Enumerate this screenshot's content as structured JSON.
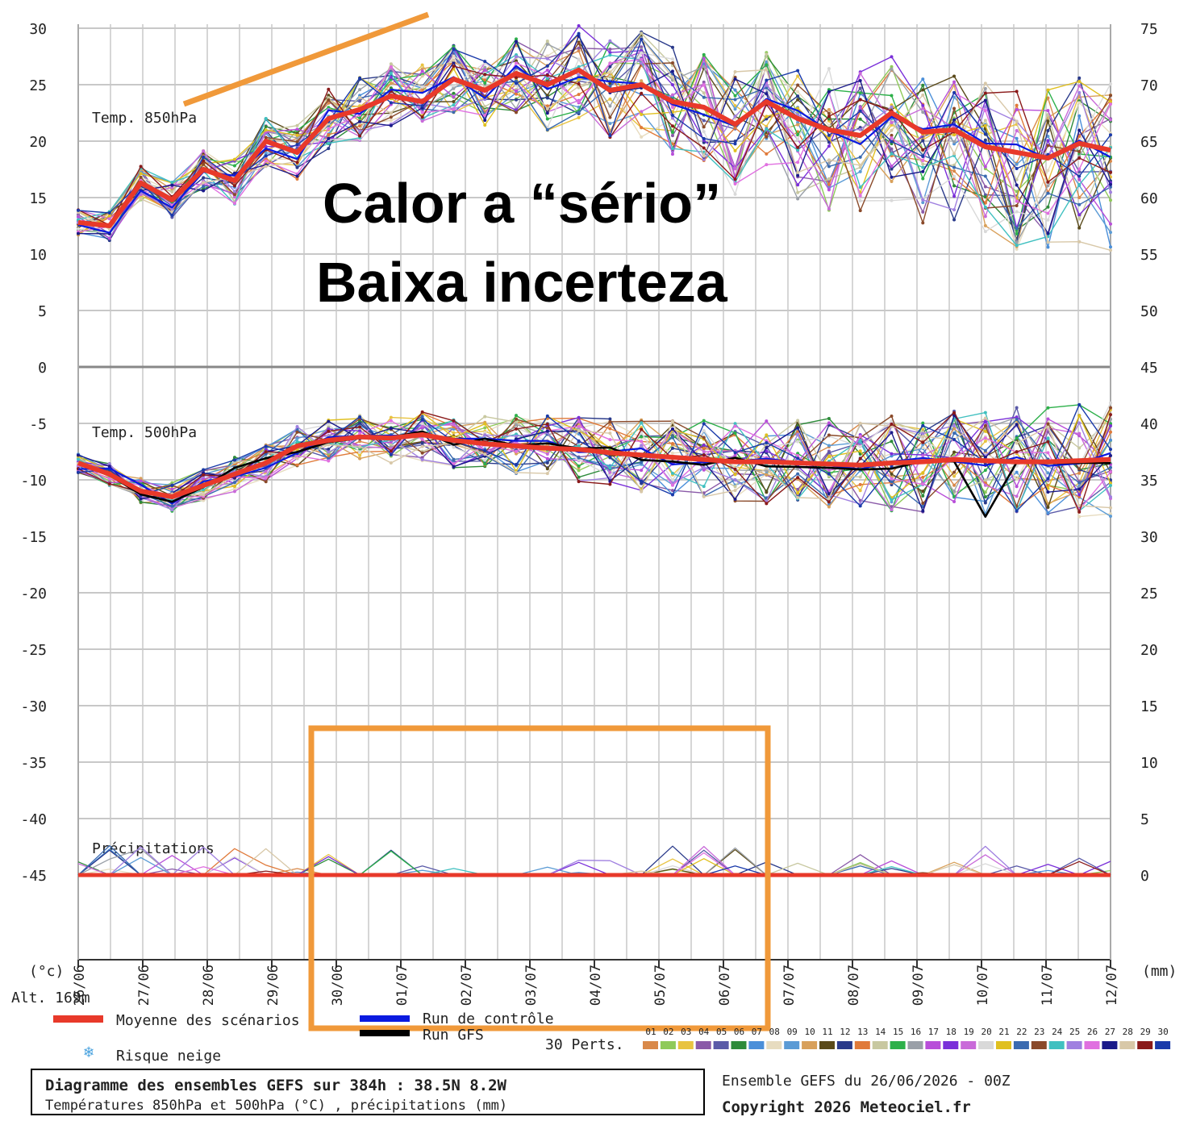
{
  "overlay": {
    "line1": "Calor a “sério”",
    "line2": "Baixa incerteza"
  },
  "chart_data": {
    "type": "line",
    "left_axis": {
      "ticks": [
        "30",
        "25",
        "20",
        "15",
        "10",
        "5",
        "0",
        "-5",
        "-10",
        "-15",
        "-20",
        "-25",
        "-30",
        "-35",
        "-40",
        "-45"
      ],
      "unit": "(°c)"
    },
    "right_axis": {
      "ticks": [
        "75",
        "70",
        "65",
        "60",
        "55",
        "50",
        "45",
        "40",
        "35",
        "30",
        "25",
        "20",
        "15",
        "10",
        "5",
        "0"
      ],
      "unit": "(mm)"
    },
    "altitude": "Alt. 169m",
    "x_dates": [
      "26/06",
      "27/06",
      "28/06",
      "29/06",
      "30/06",
      "01/07",
      "02/07",
      "03/07",
      "04/07",
      "05/07",
      "06/07",
      "07/07",
      "08/07",
      "09/07",
      "10/07",
      "11/07",
      "12/07"
    ],
    "panels": [
      {
        "label": "Temp. 850hPa",
        "unit": "°C"
      },
      {
        "label": "Temp. 500hPa",
        "unit": "°C"
      },
      {
        "label": "Précipitations",
        "unit": "mm"
      }
    ],
    "mean_850": [
      12.8,
      12.5,
      16.3,
      14.8,
      17.5,
      16.5,
      20.0,
      19.0,
      22.0,
      22.8,
      24.0,
      23.5,
      25.5,
      24.5,
      26.0,
      25.0,
      26.3,
      24.5,
      25.0,
      23.5,
      23.0,
      21.5,
      23.5,
      22.0,
      21.0,
      20.5,
      22.5,
      20.8,
      21.0,
      19.5,
      19.0,
      18.5,
      19.8,
      19.2
    ],
    "mean_500": [
      -8.5,
      -9.5,
      -11.0,
      -11.5,
      -10.5,
      -9.5,
      -8.5,
      -7.0,
      -6.5,
      -6.2,
      -6.3,
      -6.0,
      -6.5,
      -6.8,
      -7.0,
      -7.2,
      -7.3,
      -7.6,
      -7.8,
      -8.0,
      -8.2,
      -8.4,
      -8.4,
      -8.5,
      -8.6,
      -8.7,
      -8.5,
      -8.4,
      -8.2,
      -8.3,
      -8.4,
      -8.4,
      -8.3,
      -8.2
    ],
    "mean_precip": [
      0,
      0,
      0,
      0,
      0,
      0,
      0,
      0,
      0,
      0,
      0,
      0,
      0,
      0,
      0,
      0,
      0,
      0,
      0,
      0,
      0,
      0,
      0,
      0,
      0,
      0,
      0,
      0,
      0,
      0,
      0,
      0,
      0,
      0
    ],
    "perturbation_colors": [
      "#d9894a",
      "#8fca5a",
      "#e8c341",
      "#8a5aa8",
      "#5a5aa8",
      "#2e8b3a",
      "#4b8fd9",
      "#e7dcc0",
      "#5b9bd5",
      "#d8a05a",
      "#5a4a1a",
      "#2a3a8a",
      "#e07a3a",
      "#c8c8a0",
      "#2db04a",
      "#9aa0a8",
      "#b84fd9",
      "#7a2fd9",
      "#c96ad9",
      "#d9d9d9",
      "#e0c020",
      "#3a6ab0",
      "#8a4a2a",
      "#40c0c0",
      "#a080e0",
      "#e070e0",
      "#1a1a8a",
      "#d8c8a8",
      "#8a1a1a",
      "#1a3aaa"
    ],
    "legend": {
      "mean": "Moyenne des scénarios",
      "control": "Run de contrôle",
      "gfs": "Run GFS",
      "perts": "30 Perts.",
      "snow": "Risque neige",
      "mean_color": "#e8392a",
      "control_color": "#0a1ae0",
      "gfs_color": "#000000",
      "pert_numbers": [
        "01",
        "02",
        "03",
        "04",
        "05",
        "06",
        "07",
        "08",
        "09",
        "10",
        "11",
        "12",
        "13",
        "14",
        "15",
        "16",
        "17",
        "18",
        "19",
        "20",
        "21",
        "22",
        "23",
        "24",
        "25",
        "26",
        "27",
        "28",
        "29",
        "30"
      ]
    }
  },
  "info": {
    "title": "Diagramme des ensembles GEFS sur 384h : 38.5N 8.2W",
    "subtitle": "Températures 850hPa et 500hPa (°C) , précipitations (mm)",
    "run": "Ensemble GEFS du 26/06/2026 - 00Z",
    "copyright": "Copyright 2026 Meteociel.fr"
  },
  "annotation_color": "#f0993a"
}
